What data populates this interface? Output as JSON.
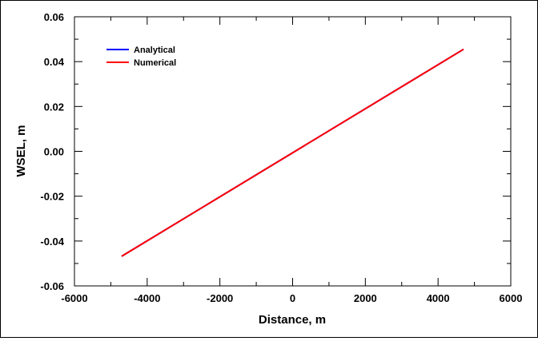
{
  "chart_data": {
    "type": "line",
    "xlabel": "Distance, m",
    "ylabel": "WSEL, m",
    "xlim": [
      -6000,
      6000
    ],
    "ylim": [
      -0.06,
      0.06
    ],
    "xticks": [
      -6000,
      -4000,
      -2000,
      0,
      2000,
      4000,
      6000
    ],
    "yticks": [
      -0.06,
      -0.04,
      -0.02,
      0.0,
      0.02,
      0.04,
      0.06
    ],
    "xtick_labels": [
      "-6000",
      "-4000",
      "-2000",
      "0",
      "2000",
      "4000",
      "6000"
    ],
    "ytick_labels": [
      "-0.06",
      "-0.04",
      "-0.02",
      "0.00",
      "0.02",
      "0.04",
      "0.06"
    ],
    "grid": false,
    "legend_position": "top-left",
    "series": [
      {
        "name": "Analytical",
        "color": "#0000ff",
        "x": [
          -4700,
          4700
        ],
        "y": [
          -0.0468,
          0.0455
        ]
      },
      {
        "name": "Numerical",
        "color": "#ff0000",
        "x": [
          -4700,
          4700
        ],
        "y": [
          -0.0468,
          0.0455
        ]
      }
    ]
  }
}
